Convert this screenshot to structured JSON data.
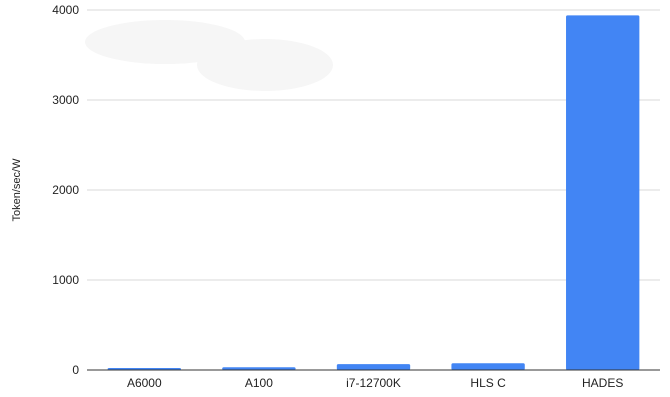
{
  "chart_data": {
    "type": "bar",
    "categories": [
      "A6000",
      "A100",
      "i7-12700K",
      "HLS C",
      "HADES"
    ],
    "series": [
      {
        "values": [
          18,
          30,
          65,
          75,
          3940
        ]
      }
    ],
    "title": "",
    "xlabel": "",
    "ylabel": "Token/sec/W",
    "ylim": [
      0,
      4000
    ],
    "yticks": [
      0,
      1000,
      2000,
      3000,
      4000
    ],
    "grid": true,
    "legend": "none",
    "bar_color": "#4285f4",
    "grid_color": "#d9d9d9",
    "axis_color": "#333333"
  }
}
